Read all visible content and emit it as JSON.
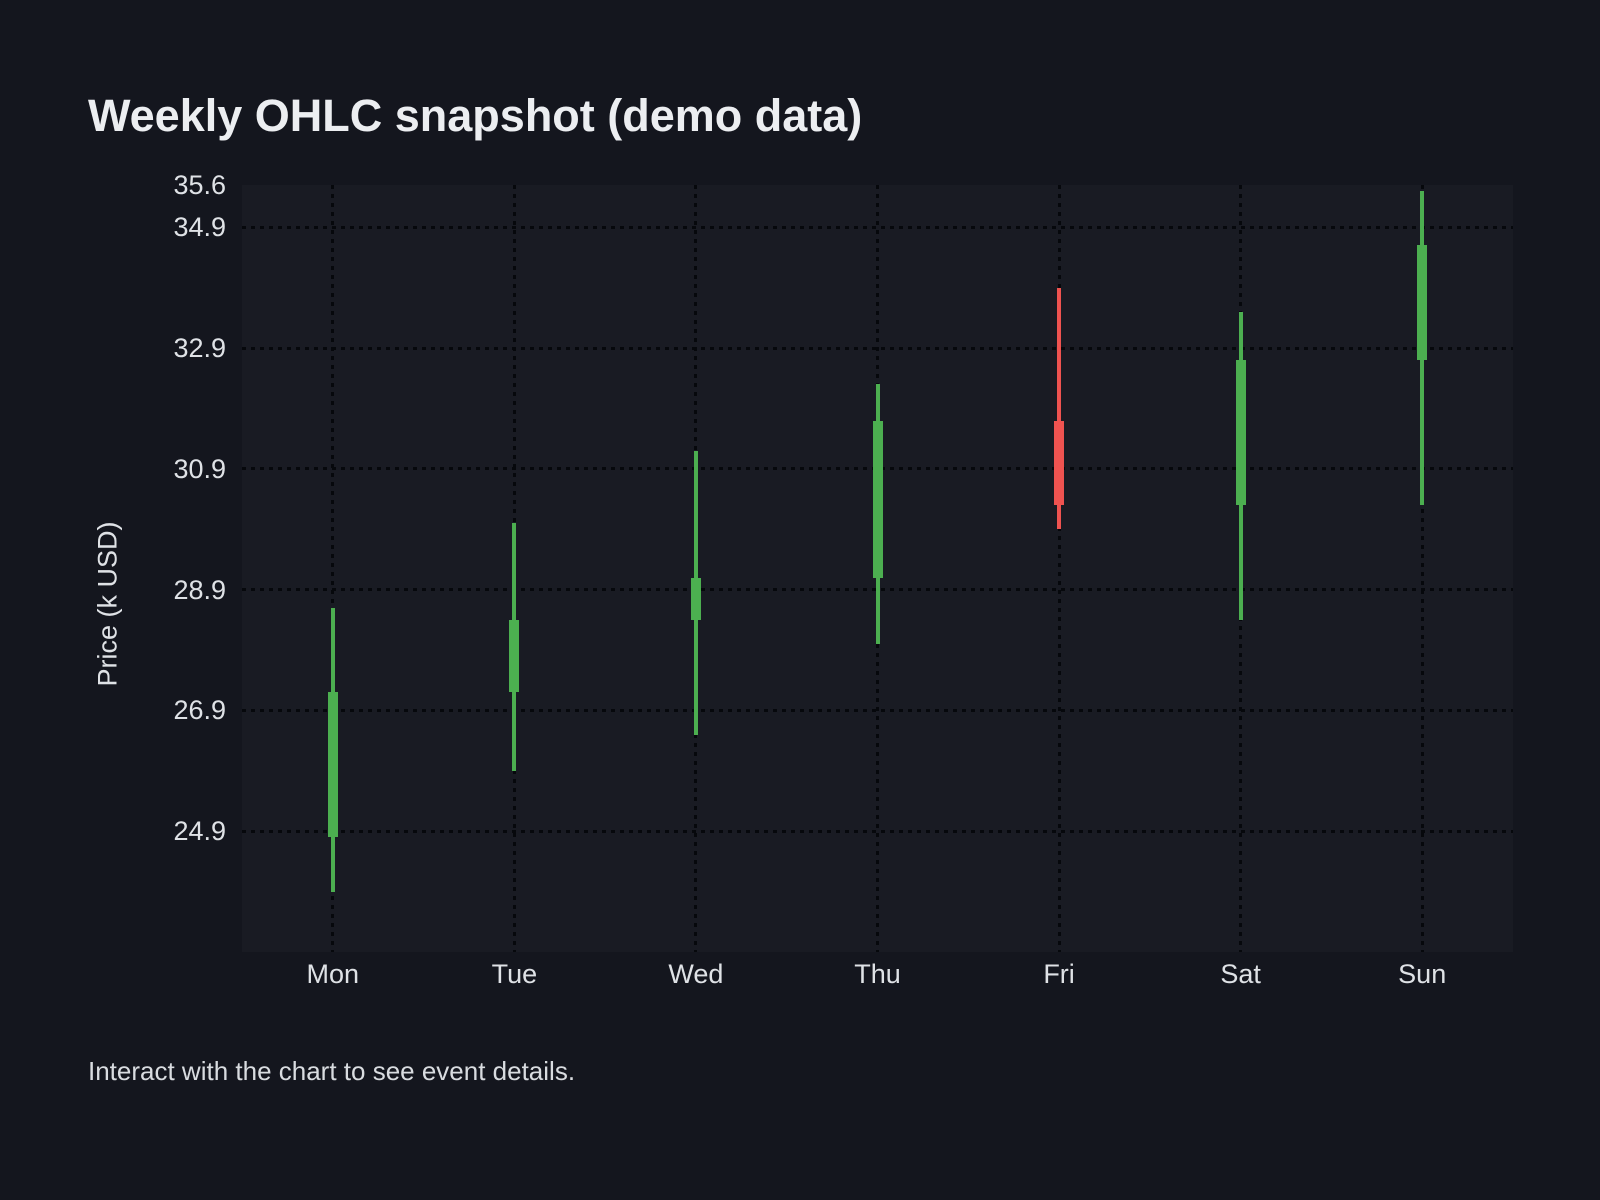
{
  "page": {
    "caption": "Interact with the chart to see event details."
  },
  "chart_data": {
    "type": "candlestick",
    "title": "Weekly OHLC snapshot (demo data)",
    "ylabel": "Price (k USD)",
    "xlabel": "",
    "categories": [
      "Mon",
      "Tue",
      "Wed",
      "Thu",
      "Fri",
      "Sat",
      "Sun"
    ],
    "series": [
      {
        "name": "OHLC",
        "points": [
          {
            "day": "Mon",
            "open": 24.8,
            "high": 28.6,
            "low": 23.9,
            "close": 27.2,
            "direction": "up"
          },
          {
            "day": "Tue",
            "open": 27.2,
            "high": 30.0,
            "low": 25.9,
            "close": 28.4,
            "direction": "up"
          },
          {
            "day": "Wed",
            "open": 28.4,
            "high": 31.2,
            "low": 26.5,
            "close": 29.1,
            "direction": "up"
          },
          {
            "day": "Thu",
            "open": 29.1,
            "high": 32.3,
            "low": 28.0,
            "close": 31.7,
            "direction": "up"
          },
          {
            "day": "Fri",
            "open": 31.7,
            "high": 33.9,
            "low": 29.9,
            "close": 30.3,
            "direction": "down"
          },
          {
            "day": "Sat",
            "open": 30.3,
            "high": 33.5,
            "low": 28.4,
            "close": 32.7,
            "direction": "up"
          },
          {
            "day": "Sun",
            "open": 32.7,
            "high": 35.5,
            "low": 30.3,
            "close": 34.6,
            "direction": "up"
          }
        ]
      }
    ],
    "ylim": [
      22.9,
      35.6
    ],
    "yticks": [
      35.6,
      34.9,
      32.9,
      30.9,
      28.9,
      26.9,
      24.9
    ],
    "grid": "dotted",
    "legend": "none",
    "colors": {
      "up": "#4caf50",
      "down": "#ef5350",
      "background": "#14161e",
      "plot_background": "#191b23",
      "gridline": "#06080c",
      "text": "#dfe2e6",
      "title_text": "#eceef1"
    }
  }
}
